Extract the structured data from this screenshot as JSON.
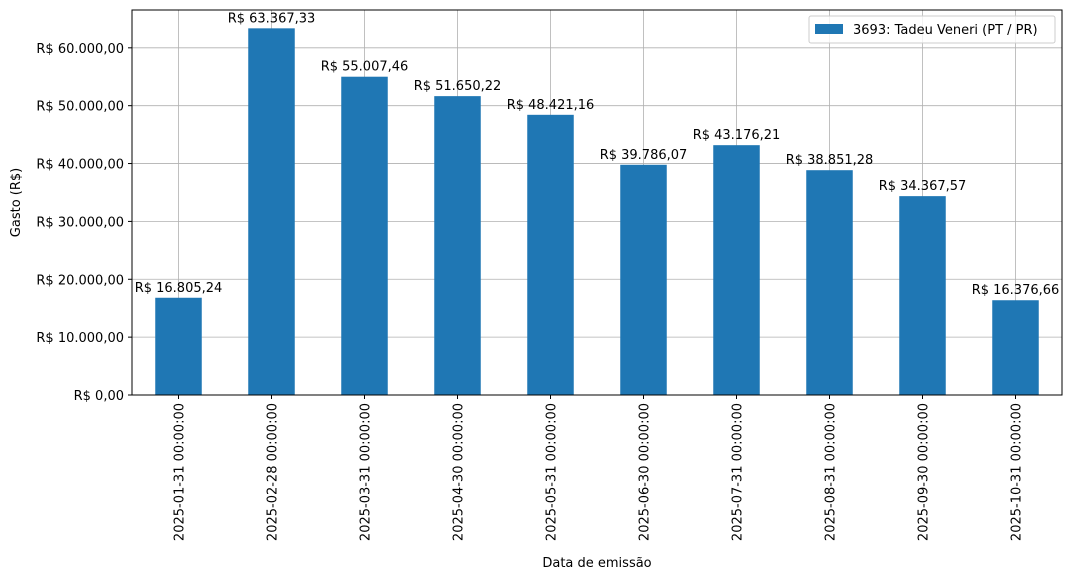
{
  "chart_data": {
    "type": "bar",
    "categories": [
      "2025-01-31 00:00:00",
      "2025-02-28 00:00:00",
      "2025-03-31 00:00:00",
      "2025-04-30 00:00:00",
      "2025-05-31 00:00:00",
      "2025-06-30 00:00:00",
      "2025-07-31 00:00:00",
      "2025-08-31 00:00:00",
      "2025-09-30 00:00:00",
      "2025-10-31 00:00:00"
    ],
    "series": [
      {
        "name": "3693: Tadeu Veneri (PT / PR)",
        "color": "#1f77b4",
        "values": [
          16805.24,
          63367.33,
          55007.46,
          51650.22,
          48421.16,
          39786.07,
          43176.21,
          38851.28,
          34367.57,
          16376.66
        ],
        "labels": [
          "R$ 16.805,24",
          "R$ 63.367,33",
          "R$ 55.007,46",
          "R$ 51.650,22",
          "R$ 48.421,16",
          "R$ 39.786,07",
          "R$ 43.176,21",
          "R$ 38.851,28",
          "R$ 34.367,57",
          "R$ 16.376,66"
        ]
      }
    ],
    "xlabel": "Data de emissão",
    "ylabel": "Gasto (R$)",
    "ylim": [
      0,
      66536
    ],
    "yticks": [
      0,
      10000,
      20000,
      30000,
      40000,
      50000,
      60000
    ],
    "ytick_labels": [
      "R$ 0,00",
      "R$ 10.000,00",
      "R$ 20.000,00",
      "R$ 30.000,00",
      "R$ 40.000,00",
      "R$ 50.000,00",
      "R$ 60.000,00"
    ],
    "grid": true,
    "legend_position": "top-right"
  }
}
